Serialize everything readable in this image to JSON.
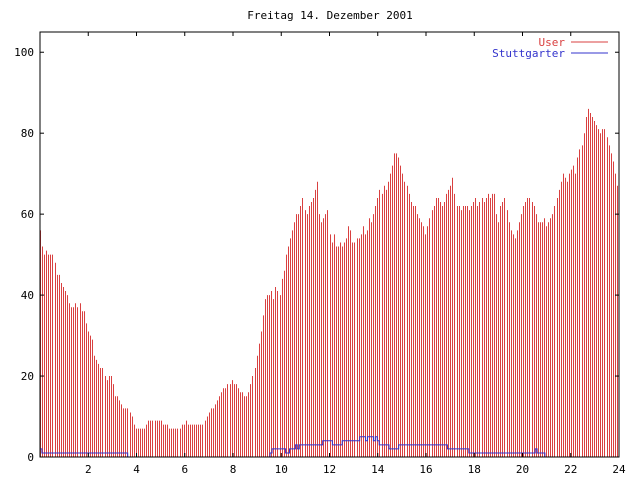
{
  "chart_data": {
    "type": "bar",
    "title": "Freitag 14. Dezember 2001",
    "xlabel": "",
    "ylabel": "",
    "xlim": [
      0,
      24
    ],
    "ylim": [
      0,
      105
    ],
    "x_ticks": [
      2,
      4,
      6,
      8,
      10,
      12,
      14,
      16,
      18,
      20,
      22,
      24
    ],
    "y_ticks": [
      0,
      20,
      40,
      60,
      80,
      100
    ],
    "sample_interval_hours": 0.0833,
    "legend_position": "top-right",
    "grid": false,
    "series": [
      {
        "name": "User",
        "style": "impulses",
        "color": "#d94040",
        "values": [
          56,
          52,
          50,
          51,
          50,
          50,
          50,
          48,
          45,
          45,
          43,
          42,
          41,
          40,
          38,
          37,
          37,
          38,
          37,
          38,
          36,
          36,
          33,
          31,
          30,
          29,
          25,
          24,
          23,
          22,
          22,
          20,
          19,
          20,
          20,
          18,
          15,
          15,
          14,
          13,
          12,
          12,
          12,
          11,
          10,
          8,
          7,
          7,
          7,
          7,
          7,
          8,
          9,
          9,
          9,
          9,
          9,
          9,
          9,
          8,
          8,
          8,
          7,
          7,
          7,
          7,
          7,
          7,
          8,
          8,
          9,
          8,
          8,
          8,
          8,
          8,
          8,
          8,
          8,
          9,
          10,
          11,
          12,
          12,
          13,
          14,
          15,
          16,
          17,
          17,
          18,
          18,
          19,
          18,
          18,
          17,
          16,
          16,
          15,
          15,
          16,
          18,
          20,
          22,
          25,
          28,
          31,
          35,
          39,
          40,
          40,
          41,
          39,
          42,
          41,
          40,
          44,
          46,
          50,
          52,
          54,
          56,
          58,
          60,
          60,
          62,
          64,
          61,
          60,
          62,
          63,
          64,
          66,
          68,
          60,
          58,
          59,
          60,
          61,
          55,
          53,
          55,
          52,
          52,
          53,
          52,
          53,
          54,
          57,
          56,
          53,
          53,
          54,
          54,
          55,
          57,
          55,
          56,
          59,
          58,
          60,
          62,
          64,
          66,
          65,
          67,
          66,
          68,
          70,
          72,
          75,
          75,
          74,
          72,
          70,
          68,
          67,
          65,
          63,
          62,
          62,
          60,
          59,
          58,
          57,
          55,
          57,
          59,
          61,
          62,
          64,
          64,
          63,
          62,
          63,
          65,
          66,
          67,
          69,
          65,
          62,
          62,
          61,
          62,
          62,
          62,
          61,
          62,
          63,
          64,
          62,
          63,
          64,
          63,
          64,
          65,
          64,
          65,
          65,
          60,
          58,
          62,
          63,
          64,
          61,
          58,
          56,
          55,
          54,
          56,
          58,
          60,
          62,
          63,
          64,
          64,
          63,
          62,
          60,
          58,
          58,
          58,
          59,
          57,
          58,
          59,
          60,
          62,
          64,
          66,
          68,
          70,
          69,
          68,
          70,
          71,
          72,
          70,
          74,
          76,
          77,
          80,
          84,
          86,
          85,
          84,
          83,
          82,
          81,
          80,
          81,
          81,
          79,
          77,
          75,
          73,
          70,
          67
        ]
      },
      {
        "name": "Stuttgarter",
        "style": "steps",
        "color": "#3333cc",
        "values": [
          2,
          1,
          1,
          1,
          1,
          1,
          1,
          1,
          1,
          1,
          1,
          1,
          1,
          1,
          1,
          1,
          1,
          1,
          1,
          1,
          1,
          1,
          1,
          1,
          1,
          1,
          1,
          1,
          1,
          1,
          1,
          1,
          1,
          1,
          1,
          1,
          1,
          1,
          1,
          1,
          1,
          1,
          1,
          1,
          1,
          0,
          0,
          0,
          0,
          0,
          0,
          0,
          0,
          0,
          0,
          0,
          0,
          0,
          0,
          0,
          0,
          0,
          0,
          0,
          0,
          0,
          0,
          0,
          0,
          0,
          0,
          0,
          0,
          0,
          0,
          0,
          0,
          0,
          0,
          0,
          0,
          0,
          0,
          0,
          0,
          0,
          0,
          0,
          0,
          0,
          0,
          0,
          0,
          0,
          0,
          0,
          0,
          0,
          0,
          0,
          0,
          0,
          0,
          0,
          0,
          0,
          0,
          0,
          0,
          0,
          0,
          0,
          0,
          0,
          0,
          0,
          0,
          0,
          1,
          2,
          2,
          2,
          2,
          2,
          2,
          2,
          1,
          1,
          2,
          2,
          2,
          3,
          2,
          3,
          3,
          3,
          3,
          3,
          3,
          3,
          3,
          3,
          3,
          3,
          3,
          4,
          4,
          4,
          4,
          4,
          3,
          3,
          3,
          3,
          3,
          4,
          4,
          4,
          4,
          4,
          4,
          4,
          4,
          4,
          5,
          5,
          5,
          4,
          5,
          5,
          5,
          4,
          5,
          4,
          3,
          3,
          3,
          3,
          3,
          2,
          2,
          2,
          2,
          2,
          3,
          3,
          3,
          3,
          3,
          3,
          3,
          3,
          3,
          3,
          3,
          3,
          3,
          3,
          3,
          3,
          3,
          3,
          3,
          3,
          3,
          3,
          3,
          3,
          3,
          2,
          2,
          2,
          2,
          2,
          2,
          2,
          2,
          2,
          2,
          2,
          1,
          1,
          1,
          1,
          1,
          1,
          1,
          1,
          1,
          1,
          1,
          1,
          1,
          1,
          1,
          1,
          1,
          1,
          1,
          1,
          1,
          1,
          1,
          1,
          1,
          1,
          1,
          1,
          1,
          1,
          1,
          1,
          1,
          1,
          2,
          1,
          1,
          1,
          1,
          0,
          0,
          0,
          0,
          0,
          0,
          0,
          0,
          0,
          0,
          0,
          0,
          0,
          0,
          0,
          0,
          0,
          0,
          0,
          0,
          0,
          0,
          0,
          0,
          0,
          0,
          0,
          0,
          0,
          0,
          0,
          0,
          0,
          0,
          0,
          0,
          0,
          0
        ]
      }
    ]
  }
}
